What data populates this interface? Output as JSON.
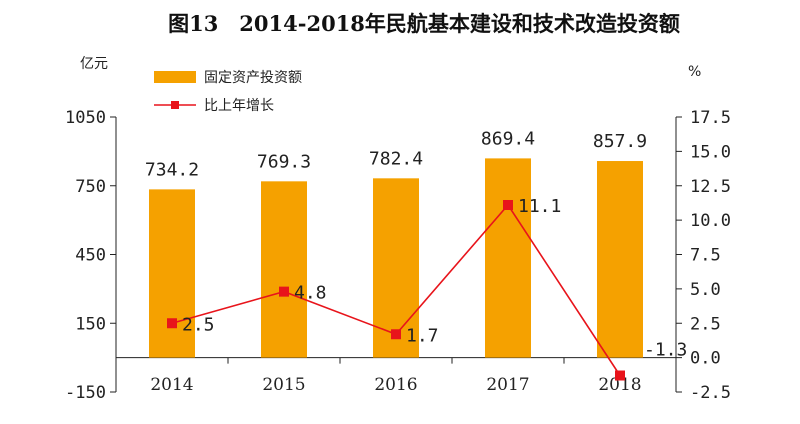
{
  "chart_data": {
    "type": "bar",
    "title": "图13　2014-2018年民航基本建设和技术改造投资额",
    "categories": [
      "2014",
      "2015",
      "2016",
      "2017",
      "2018"
    ],
    "series": [
      {
        "name": "固定资产投资额",
        "type": "bar",
        "axis": "left",
        "values": [
          734.2,
          769.3,
          782.4,
          869.4,
          857.9
        ],
        "labels": [
          "734.2",
          "769.3",
          "782.4",
          "869.4",
          "857.9"
        ],
        "color": "#F5A100"
      },
      {
        "name": "比上年增长",
        "type": "line",
        "axis": "right",
        "values": [
          2.5,
          4.8,
          1.7,
          11.1,
          -1.3
        ],
        "labels": [
          "2.5",
          "4.8",
          "1.7",
          "11.1",
          "-1.3"
        ],
        "color": "#E8141B"
      }
    ],
    "y_left": {
      "unit": "亿元",
      "range": [
        -150,
        1050
      ],
      "ticks": [
        "1050",
        "750",
        "450",
        "150",
        "-150"
      ]
    },
    "y_right": {
      "unit": "%",
      "range": [
        -2.5,
        17.5
      ],
      "ticks": [
        "17.5",
        "15.0",
        "12.5",
        "10.0",
        "7.5",
        "5.0",
        "2.5",
        "0.0",
        "-2.5"
      ]
    },
    "legend_position": "top-left",
    "grid": false
  }
}
